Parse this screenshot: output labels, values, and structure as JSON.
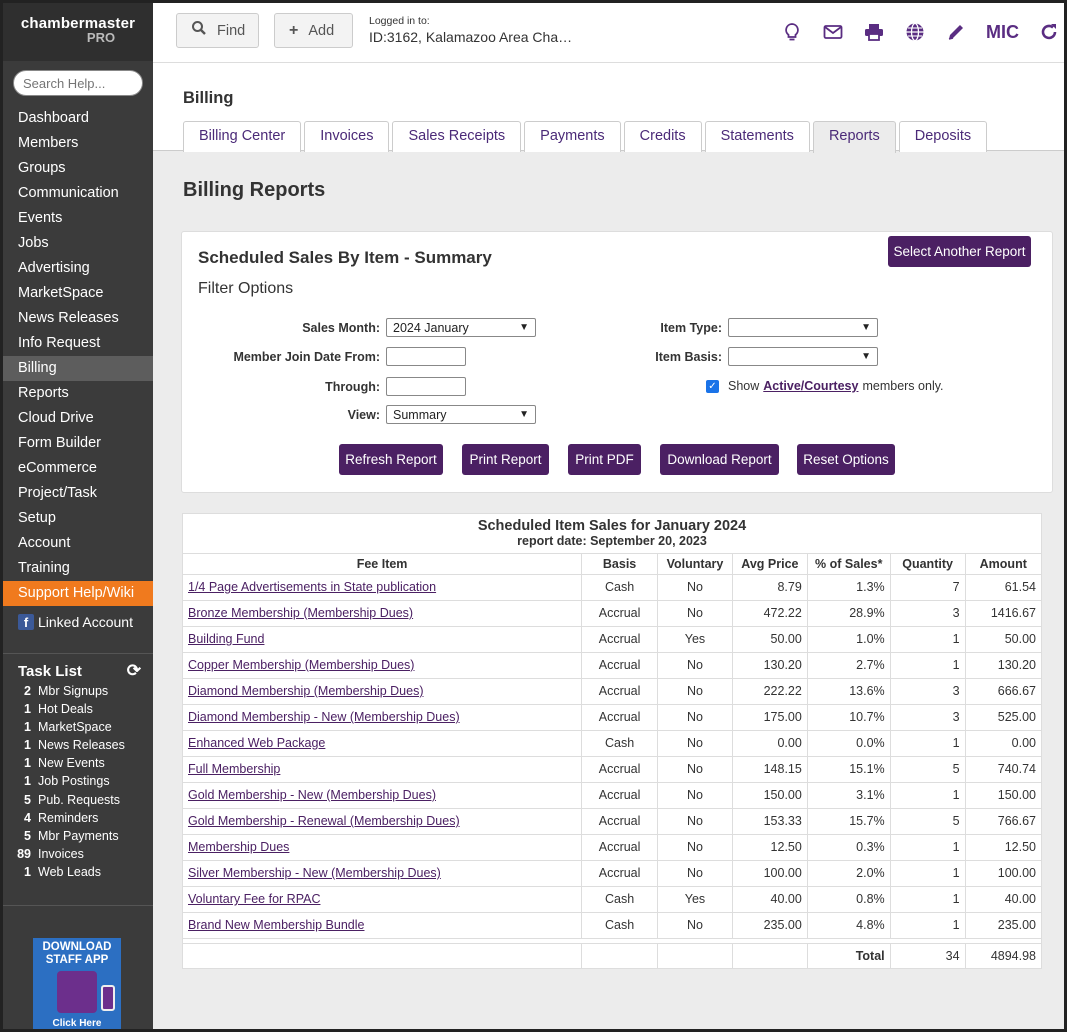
{
  "brand": {
    "line1": "chambermaster",
    "line2": "PRO"
  },
  "search_help": {
    "placeholder": "Search Help..."
  },
  "nav": {
    "items": [
      "Dashboard",
      "Members",
      "Groups",
      "Communication",
      "Events",
      "Jobs",
      "Advertising",
      "MarketSpace",
      "News Releases",
      "Info Request",
      "Billing",
      "Reports",
      "Cloud Drive",
      "Form Builder",
      "eCommerce",
      "Project/Task",
      "Setup",
      "Account",
      "Training"
    ],
    "active": "Billing",
    "support": "Support Help/Wiki",
    "linked": "Linked Account"
  },
  "tasklist": {
    "title": "Task List",
    "items": [
      {
        "count": "2",
        "label": "Mbr Signups"
      },
      {
        "count": "1",
        "label": "Hot Deals"
      },
      {
        "count": "1",
        "label": "MarketSpace"
      },
      {
        "count": "1",
        "label": "News Releases"
      },
      {
        "count": "1",
        "label": "New Events"
      },
      {
        "count": "1",
        "label": "Job Postings"
      },
      {
        "count": "5",
        "label": "Pub. Requests"
      },
      {
        "count": "4",
        "label": "Reminders"
      },
      {
        "count": "5",
        "label": "Mbr Payments"
      },
      {
        "count": "89",
        "label": "Invoices"
      },
      {
        "count": "1",
        "label": "Web Leads"
      }
    ]
  },
  "app_ad": {
    "line1": "DOWNLOAD",
    "line2": "STAFF APP",
    "cta": "Click Here"
  },
  "topbar": {
    "find": "Find",
    "add": "Add",
    "logged_label": "Logged in to:",
    "logged_value": "ID:3162, Kalamazoo Area Cha…",
    "user": "MIC"
  },
  "billing": {
    "title": "Billing",
    "tabs": [
      "Billing Center",
      "Invoices",
      "Sales Receipts",
      "Payments",
      "Credits",
      "Statements",
      "Reports",
      "Deposits"
    ],
    "active_tab": "Reports"
  },
  "page": {
    "title": "Billing Reports",
    "report_name": "Scheduled Sales By Item - Summary",
    "select_another": "Select Another Report",
    "filter_title": "Filter Options"
  },
  "filters": {
    "sales_month_label": "Sales Month:",
    "sales_month": "2024 January",
    "join_from_label": "Member Join Date From:",
    "through_label": "Through:",
    "view_label": "View:",
    "view": "Summary",
    "item_type_label": "Item Type:",
    "item_basis_label": "Item Basis:",
    "show_prefix": "Show",
    "show_link": "Active/Courtesy",
    "show_suffix": "members only."
  },
  "actions": [
    "Refresh Report",
    "Print Report",
    "Print PDF",
    "Download Report",
    "Reset Options"
  ],
  "report": {
    "title": "Scheduled Item Sales for January 2024",
    "date": "report date: September 20, 2023",
    "columns": [
      "Fee Item",
      "Basis",
      "Voluntary",
      "Avg Price",
      "% of Sales*",
      "Quantity",
      "Amount"
    ],
    "rows": [
      [
        "1/4 Page Advertisements in State publication",
        "Cash",
        "No",
        "8.79",
        "1.3%",
        "7",
        "61.54"
      ],
      [
        "Bronze Membership (Membership Dues)",
        "Accrual",
        "No",
        "472.22",
        "28.9%",
        "3",
        "1416.67"
      ],
      [
        "Building Fund",
        "Accrual",
        "Yes",
        "50.00",
        "1.0%",
        "1",
        "50.00"
      ],
      [
        "Copper Membership (Membership Dues)",
        "Accrual",
        "No",
        "130.20",
        "2.7%",
        "1",
        "130.20"
      ],
      [
        "Diamond Membership (Membership Dues)",
        "Accrual",
        "No",
        "222.22",
        "13.6%",
        "3",
        "666.67"
      ],
      [
        "Diamond Membership - New (Membership Dues)",
        "Accrual",
        "No",
        "175.00",
        "10.7%",
        "3",
        "525.00"
      ],
      [
        "Enhanced Web Package",
        "Cash",
        "No",
        "0.00",
        "0.0%",
        "1",
        "0.00"
      ],
      [
        "Full Membership",
        "Accrual",
        "No",
        "148.15",
        "15.1%",
        "5",
        "740.74"
      ],
      [
        "Gold Membership - New (Membership Dues)",
        "Accrual",
        "No",
        "150.00",
        "3.1%",
        "1",
        "150.00"
      ],
      [
        "Gold Membership - Renewal (Membership Dues)",
        "Accrual",
        "No",
        "153.33",
        "15.7%",
        "5",
        "766.67"
      ],
      [
        "Membership Dues",
        "Accrual",
        "No",
        "12.50",
        "0.3%",
        "1",
        "12.50"
      ],
      [
        "Silver Membership - New (Membership Dues)",
        "Accrual",
        "No",
        "100.00",
        "2.0%",
        "1",
        "100.00"
      ],
      [
        "Voluntary Fee for RPAC",
        "Cash",
        "Yes",
        "40.00",
        "0.8%",
        "1",
        "40.00"
      ],
      [
        "Brand New Membership Bundle",
        "Cash",
        "No",
        "235.00",
        "4.8%",
        "1",
        "235.00"
      ]
    ],
    "total_label": "Total",
    "total_quantity": "34",
    "total_amount": "4894.98"
  },
  "colors": {
    "accent": "#4b2063",
    "support": "#f07a1e",
    "sidebar": "#3b3b3b"
  }
}
